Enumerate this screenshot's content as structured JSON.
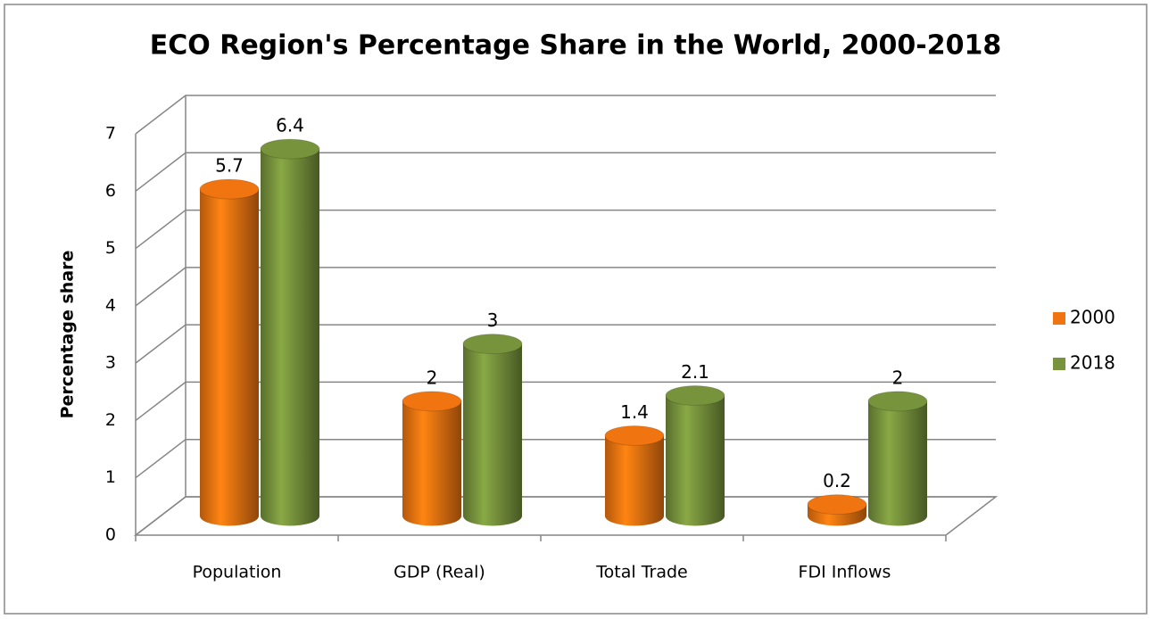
{
  "chart_data": {
    "type": "bar3d",
    "title": "ECO Region's Percentage Share in the World, 2000-2018",
    "y_label": "Percentage share",
    "categories": [
      "Population",
      "GDP (Real)",
      "Total Trade",
      "FDI Inflows"
    ],
    "series": [
      {
        "name": "2000",
        "color": "#f07410",
        "values": [
          5.7,
          2,
          1.4,
          0.2
        ]
      },
      {
        "name": "2018",
        "color": "#77933c",
        "values": [
          6.4,
          3,
          2.1,
          2
        ]
      }
    ],
    "ylim": [
      0,
      7
    ],
    "yticks": [
      0,
      1,
      2,
      3,
      4,
      5,
      6,
      7
    ],
    "grid": true,
    "legend": "right"
  }
}
